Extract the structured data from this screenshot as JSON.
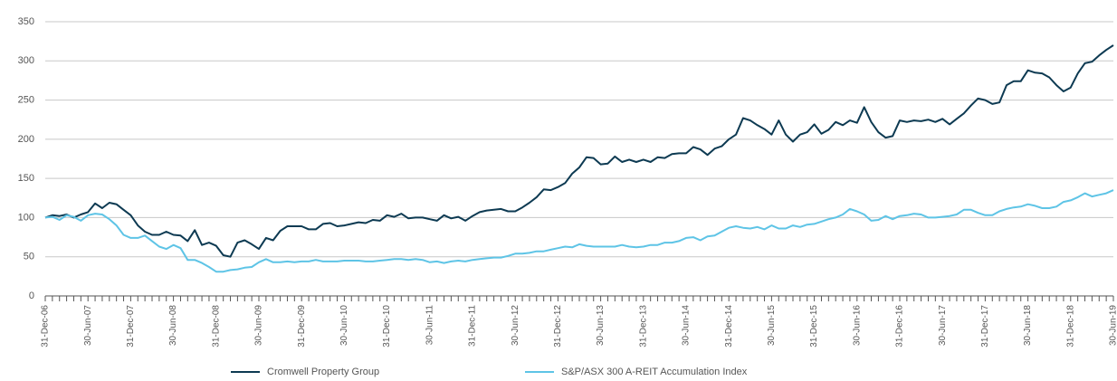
{
  "chart_data": {
    "type": "line",
    "categories": [
      "31-Dec-06",
      null,
      null,
      null,
      null,
      null,
      "30-Jun-07",
      null,
      null,
      null,
      null,
      null,
      "31-Dec-07",
      null,
      null,
      null,
      null,
      null,
      "30-Jun-08",
      null,
      null,
      null,
      null,
      null,
      "31-Dec-08",
      null,
      null,
      null,
      null,
      null,
      "30-Jun-09",
      null,
      null,
      null,
      null,
      null,
      "31-Dec-09",
      null,
      null,
      null,
      null,
      null,
      "30-Jun-10",
      null,
      null,
      null,
      null,
      null,
      "31-Dec-10",
      null,
      null,
      null,
      null,
      null,
      "30-Jun-11",
      null,
      null,
      null,
      null,
      null,
      "31-Dec-11",
      null,
      null,
      null,
      null,
      null,
      "30-Jun-12",
      null,
      null,
      null,
      null,
      null,
      "31-Dec-12",
      null,
      null,
      null,
      null,
      null,
      "30-Jun-13",
      null,
      null,
      null,
      null,
      null,
      "31-Dec-13",
      null,
      null,
      null,
      null,
      null,
      "30-Jun-14",
      null,
      null,
      null,
      null,
      null,
      "31-Dec-14",
      null,
      null,
      null,
      null,
      null,
      "30-Jun-15",
      null,
      null,
      null,
      null,
      null,
      "31-Dec-15",
      null,
      null,
      null,
      null,
      null,
      "30-Jun-16",
      null,
      null,
      null,
      null,
      null,
      "31-Dec-16",
      null,
      null,
      null,
      null,
      null,
      "30-Jun-17",
      null,
      null,
      null,
      null,
      null,
      "31-Dec-17",
      null,
      null,
      null,
      null,
      null,
      "30-Jun-18",
      null,
      null,
      null,
      null,
      null,
      "31-Dec-18",
      null,
      null,
      null,
      null,
      null,
      "30-Jun-19"
    ],
    "series": [
      {
        "name": "Cromwell Property Group",
        "color": "#0d3a52",
        "values": [
          100,
          103,
          102,
          104,
          100,
          104,
          107,
          118,
          112,
          119,
          117,
          110,
          103,
          90,
          82,
          78,
          78,
          82,
          78,
          77,
          70,
          84,
          65,
          68,
          64,
          52,
          50,
          68,
          71,
          66,
          60,
          74,
          71,
          83,
          89,
          89,
          89,
          85,
          85,
          92,
          93,
          89,
          90,
          92,
          94,
          93,
          97,
          96,
          103,
          101,
          105,
          99,
          100,
          100,
          98,
          96,
          103,
          99,
          101,
          96,
          102,
          107,
          109,
          110,
          111,
          108,
          108,
          113,
          119,
          126,
          136,
          135,
          139,
          144,
          156,
          164,
          177,
          176,
          168,
          169,
          178,
          171,
          174,
          171,
          174,
          171,
          177,
          176,
          181,
          182,
          182,
          190,
          187,
          180,
          188,
          191,
          200,
          206,
          227,
          224,
          218,
          213,
          206,
          224,
          206,
          197,
          206,
          209,
          219,
          207,
          212,
          222,
          218,
          224,
          221,
          241,
          222,
          209,
          202,
          204,
          224,
          222,
          224,
          223,
          225,
          222,
          226,
          219,
          226,
          233,
          243,
          252,
          250,
          245,
          247,
          269,
          274,
          274,
          288,
          285,
          284,
          279,
          269,
          261,
          266,
          284,
          297,
          299,
          307,
          314,
          320
        ]
      },
      {
        "name": "S&P/ASX 300 A-REIT Accumulation Index",
        "color": "#5ec4e6",
        "values": [
          100,
          101,
          97,
          103,
          101,
          96,
          103,
          105,
          104,
          98,
          90,
          78,
          74,
          74,
          77,
          70,
          63,
          60,
          65,
          61,
          46,
          46,
          42,
          37,
          31,
          31,
          33,
          34,
          36,
          37,
          43,
          47,
          43,
          43,
          44,
          43,
          44,
          44,
          46,
          44,
          44,
          44,
          45,
          45,
          45,
          44,
          44,
          45,
          46,
          47,
          47,
          46,
          47,
          46,
          43,
          44,
          42,
          44,
          45,
          44,
          46,
          47,
          48,
          49,
          49,
          51,
          54,
          54,
          55,
          57,
          57,
          59,
          61,
          63,
          62,
          66,
          64,
          63,
          63,
          63,
          63,
          65,
          63,
          62,
          63,
          65,
          65,
          68,
          68,
          70,
          74,
          75,
          71,
          76,
          77,
          82,
          87,
          89,
          87,
          86,
          88,
          85,
          90,
          86,
          86,
          90,
          88,
          91,
          92,
          95,
          98,
          100,
          104,
          111,
          108,
          104,
          96,
          97,
          102,
          98,
          102,
          103,
          105,
          104,
          100,
          100,
          101,
          102,
          104,
          110,
          110,
          106,
          103,
          103,
          108,
          111,
          113,
          114,
          117,
          115,
          112,
          112,
          114,
          120,
          122,
          126,
          131,
          127,
          129,
          131,
          135
        ]
      }
    ],
    "ylim": [
      0,
      350
    ],
    "yticks": [
      0,
      50,
      100,
      150,
      200,
      250,
      300,
      350
    ],
    "grid": true,
    "legend": "bottom"
  }
}
